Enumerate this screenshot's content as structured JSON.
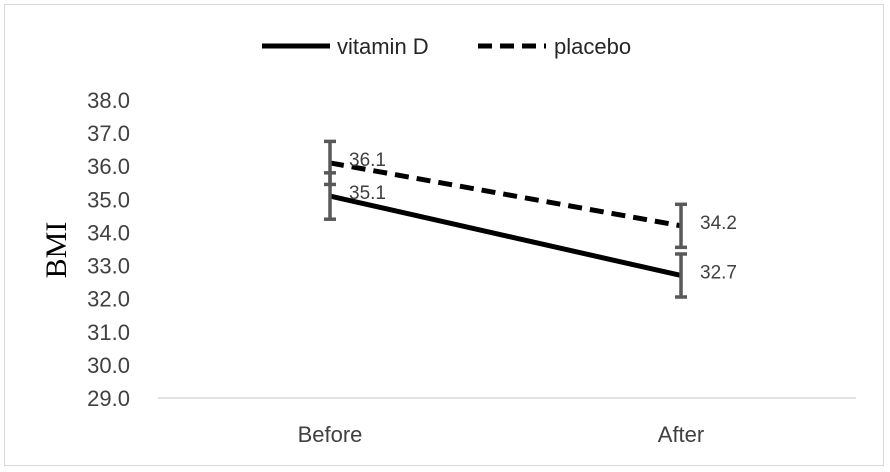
{
  "chart_data": {
    "type": "line",
    "categories": [
      "Before",
      "After"
    ],
    "ylabel": "BMI",
    "ylim": [
      29.0,
      38.0
    ],
    "yticks": [
      "29.0",
      "30.0",
      "31.0",
      "32.0",
      "33.0",
      "34.0",
      "35.0",
      "36.0",
      "37.0",
      "38.0"
    ],
    "grid": false,
    "legend_position": "top",
    "series": [
      {
        "name": "vitamin D",
        "line_style": "solid",
        "color": "#000000",
        "values": [
          35.1,
          32.7
        ],
        "labels": [
          "35.1",
          "32.7"
        ],
        "error": [
          0.7,
          0.65
        ]
      },
      {
        "name": "placebo",
        "line_style": "dashed",
        "color": "#000000",
        "values": [
          36.1,
          34.2
        ],
        "labels": [
          "36.1",
          "34.2"
        ],
        "error": [
          0.65,
          0.65
        ]
      }
    ],
    "errorbar_color": "#595959"
  }
}
